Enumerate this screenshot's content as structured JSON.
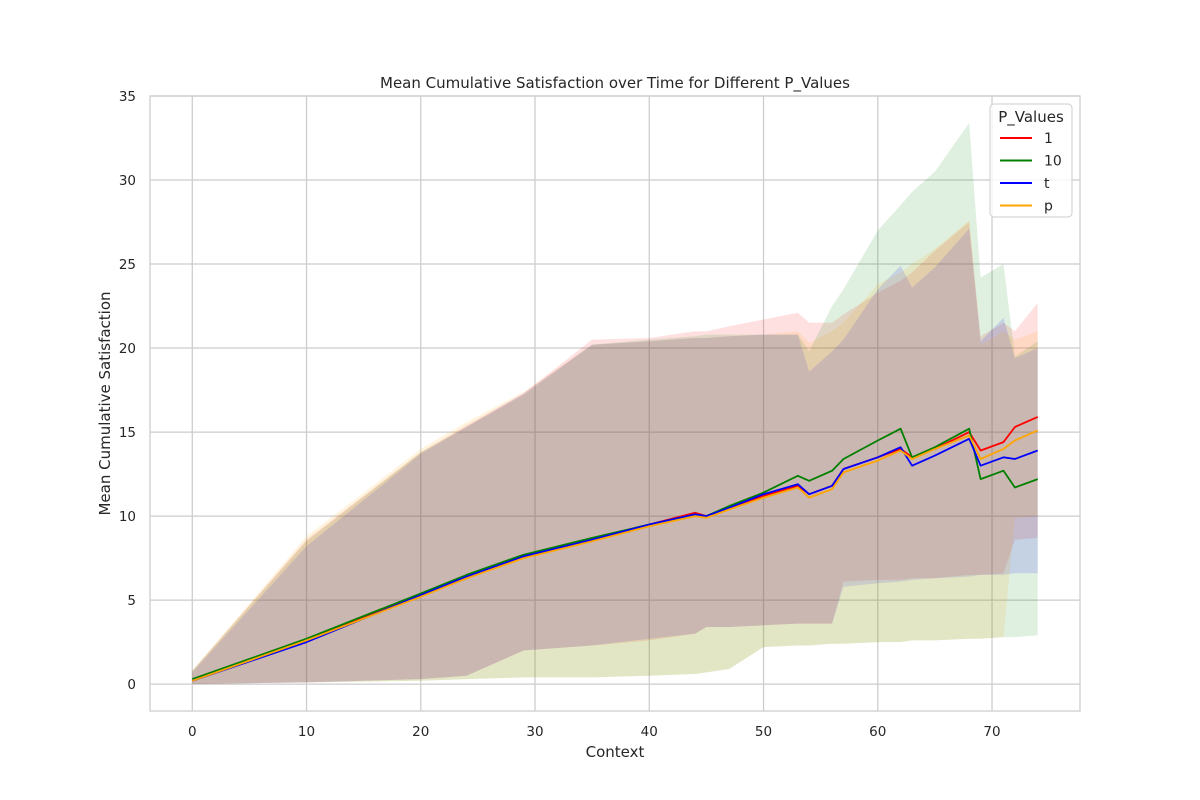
{
  "chart_data": {
    "type": "line",
    "title": "Mean Cumulative Satisfaction over Time for Different P_Values",
    "xlabel": "Context",
    "ylabel": "Mean Cumulative Satisfaction",
    "xlim": [
      -3.7,
      77.7
    ],
    "ylim": [
      -1.6,
      35
    ],
    "xticks": [
      0,
      10,
      20,
      30,
      40,
      50,
      60,
      70
    ],
    "yticks": [
      0,
      5,
      10,
      15,
      20,
      25,
      30,
      35
    ],
    "grid": true,
    "legend": {
      "title": "P_Values",
      "position": "top-right"
    },
    "series": [
      {
        "name": "1",
        "color": "#ff0000",
        "x": [
          0,
          10,
          20,
          24,
          29,
          35,
          40,
          44,
          45,
          47,
          50,
          53,
          54,
          56,
          57,
          60,
          62,
          63,
          65,
          68,
          69,
          71,
          72,
          74
        ],
        "y": [
          0.2,
          2.6,
          5.3,
          6.3,
          7.6,
          8.6,
          9.5,
          10.2,
          10.0,
          10.5,
          11.2,
          11.8,
          11.3,
          11.8,
          12.8,
          13.5,
          14.0,
          13.5,
          14.0,
          15.0,
          13.9,
          14.4,
          15.3,
          15.9
        ],
        "ci_lower": [
          0.0,
          0.1,
          0.3,
          0.5,
          2.0,
          2.3,
          2.6,
          3.0,
          3.4,
          3.4,
          3.5,
          3.6,
          3.6,
          3.6,
          6.1,
          6.2,
          6.2,
          6.3,
          6.3,
          6.5,
          6.5,
          6.6,
          8.6,
          8.7
        ],
        "ci_upper": [
          0.8,
          8.6,
          13.8,
          15.4,
          17.3,
          20.5,
          20.6,
          21.0,
          21.0,
          21.3,
          21.7,
          22.1,
          21.5,
          21.5,
          22.0,
          23.3,
          24.0,
          24.5,
          25.8,
          27.5,
          20.7,
          21.5,
          21.0,
          22.7
        ]
      },
      {
        "name": "10",
        "color": "#008000",
        "x": [
          0,
          10,
          20,
          24,
          29,
          35,
          40,
          44,
          45,
          47,
          50,
          53,
          54,
          56,
          57,
          60,
          62,
          63,
          65,
          68,
          69,
          71,
          72,
          74
        ],
        "y": [
          0.3,
          2.7,
          5.4,
          6.5,
          7.7,
          8.7,
          9.5,
          10.1,
          10.0,
          10.6,
          11.4,
          12.4,
          12.1,
          12.7,
          13.4,
          14.5,
          15.2,
          13.5,
          14.1,
          15.2,
          12.2,
          12.7,
          11.7,
          12.2
        ],
        "ci_lower": [
          0.0,
          0.1,
          0.2,
          0.3,
          0.4,
          0.4,
          0.5,
          0.6,
          0.7,
          0.9,
          2.2,
          2.3,
          2.3,
          2.4,
          2.4,
          2.5,
          2.5,
          2.6,
          2.6,
          2.7,
          2.7,
          2.8,
          2.8,
          2.9
        ],
        "ci_upper": [
          0.8,
          8.5,
          13.8,
          15.3,
          17.2,
          20.2,
          20.5,
          20.7,
          20.8,
          20.8,
          20.8,
          20.8,
          19.8,
          22.5,
          23.5,
          27.0,
          28.5,
          29.3,
          30.5,
          33.4,
          24.2,
          25.0,
          19.5,
          20.4
        ]
      },
      {
        "name": "t",
        "color": "#0000ff",
        "x": [
          0,
          10,
          20,
          24,
          29,
          35,
          40,
          44,
          45,
          47,
          50,
          53,
          54,
          56,
          57,
          60,
          62,
          63,
          65,
          68,
          69,
          71,
          72,
          74
        ],
        "y": [
          0.2,
          2.5,
          5.3,
          6.4,
          7.6,
          8.6,
          9.5,
          10.1,
          10.0,
          10.5,
          11.3,
          11.9,
          11.3,
          11.8,
          12.8,
          13.5,
          14.1,
          13.0,
          13.6,
          14.6,
          13.0,
          13.5,
          13.4,
          13.9
        ],
        "ci_lower": [
          0.0,
          0.1,
          0.3,
          0.5,
          2.0,
          2.3,
          2.7,
          3.0,
          3.4,
          3.4,
          3.5,
          3.6,
          3.6,
          3.6,
          5.8,
          6.0,
          6.1,
          6.2,
          6.3,
          6.4,
          6.5,
          6.5,
          6.6,
          6.6
        ],
        "ci_upper": [
          0.7,
          8.2,
          13.7,
          15.3,
          17.3,
          20.2,
          20.4,
          20.6,
          20.6,
          20.7,
          20.8,
          20.8,
          18.6,
          19.8,
          20.5,
          23.5,
          24.9,
          23.6,
          24.8,
          27.1,
          20.4,
          21.8,
          19.4,
          20.0
        ]
      },
      {
        "name": "p",
        "color": "#ffa500",
        "x": [
          0,
          10,
          20,
          24,
          29,
          35,
          40,
          44,
          45,
          47,
          50,
          53,
          54,
          56,
          57,
          60,
          62,
          63,
          65,
          68,
          69,
          71,
          72,
          74
        ],
        "y": [
          0.2,
          2.6,
          5.2,
          6.3,
          7.5,
          8.5,
          9.4,
          10.0,
          9.9,
          10.4,
          11.1,
          11.7,
          11.1,
          11.6,
          12.6,
          13.3,
          13.9,
          13.4,
          14.0,
          14.8,
          13.4,
          14.0,
          14.5,
          15.1
        ],
        "ci_lower": [
          0.0,
          0.1,
          0.2,
          0.3,
          0.4,
          0.4,
          0.5,
          0.6,
          0.7,
          0.9,
          2.2,
          2.3,
          2.3,
          2.4,
          2.4,
          2.5,
          2.5,
          2.6,
          2.6,
          2.7,
          2.7,
          2.8,
          9.9,
          10.0
        ],
        "ci_upper": [
          0.8,
          8.8,
          14.0,
          15.6,
          17.4,
          20.2,
          20.4,
          20.6,
          20.6,
          20.7,
          20.8,
          21.0,
          20.3,
          21.0,
          21.5,
          23.8,
          24.5,
          25.0,
          25.9,
          27.6,
          20.2,
          21.0,
          20.5,
          21.0
        ]
      }
    ]
  }
}
